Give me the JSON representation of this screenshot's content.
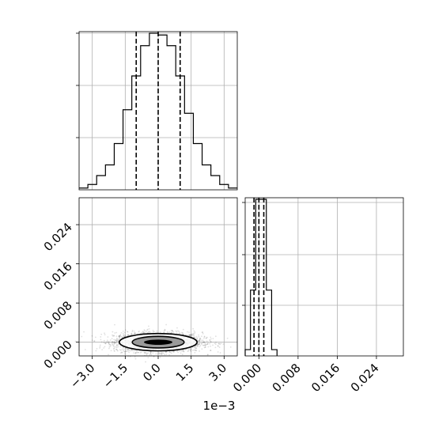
{
  "chart_data": [
    {
      "type": "histogram",
      "panel": "marginal-x",
      "xlim": [
        -0.0036,
        0.0036
      ],
      "bin_edges": [
        -0.0036,
        -0.0032,
        -0.0028,
        -0.0024,
        -0.002,
        -0.0016,
        -0.0012,
        -0.0008,
        -0.0004,
        0,
        0.0004,
        0.0008,
        0.0012,
        0.0016,
        0.002,
        0.0024,
        0.0028,
        0.0032,
        0.0036
      ],
      "counts": [
        1,
        3,
        8,
        14,
        26,
        45,
        64,
        81,
        88,
        87,
        81,
        64,
        43,
        26,
        14,
        8,
        3,
        1
      ],
      "quantile_lines": [
        -0.001,
        0.0,
        0.001
      ],
      "grid": true
    },
    {
      "type": "contour_scatter",
      "panel": "joint",
      "xlim": [
        -0.0036,
        0.0036
      ],
      "ylim": [
        -0.0028,
        0.0295
      ],
      "x_ticks": [
        -0.003,
        -0.0015,
        0.0,
        0.0015,
        0.003
      ],
      "x_tick_labels": [
        "−3.0",
        "−1.5",
        "0.0",
        "1.5",
        "3.0"
      ],
      "x_offset_text": "1e−3",
      "y_ticks": [
        0.0,
        0.008,
        0.016,
        0.024
      ],
      "y_tick_labels": [
        "0.000",
        "0.008",
        "0.016",
        "0.024"
      ],
      "points": {
        "count": 2500,
        "x_mean": 0.0,
        "x_std": 0.001,
        "y_mean": 0.0,
        "y_std": 0.001
      },
      "contour_levels": [
        {
          "level": 0.5,
          "x_halfwidth": 0.00118,
          "y_halfwidth": 0.00118
        },
        {
          "level": 1.0,
          "x_halfwidth": 0.00177,
          "y_halfwidth": 0.00177
        }
      ],
      "grid": true
    },
    {
      "type": "histogram",
      "panel": "marginal-y",
      "xlim": [
        -0.0028,
        0.0295
      ],
      "x_ticks": [
        0.0,
        0.008,
        0.016,
        0.024
      ],
      "x_tick_labels": [
        "0.000",
        "0.008",
        "0.016",
        "0.024"
      ],
      "bin_edges": [
        -0.0028,
        -0.00172,
        -0.00064,
        0.00044,
        0.00152,
        0.0026,
        0.0037
      ],
      "counts": [
        4,
        42,
        100,
        100,
        42,
        4
      ],
      "quantile_lines": [
        -0.001,
        0.0,
        0.001
      ],
      "grid": true
    }
  ]
}
